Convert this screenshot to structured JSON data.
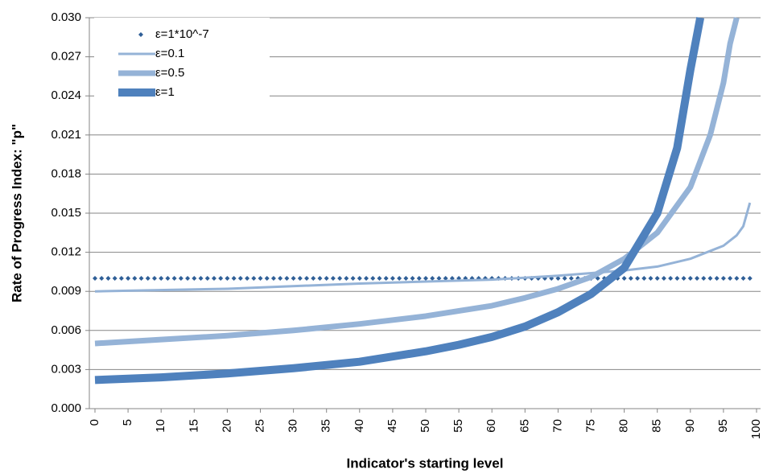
{
  "chart_data": {
    "type": "line",
    "y_label": "Rate of Progress Index: \"p\"",
    "x_label": "Indicator's starting level",
    "xlim": [
      0,
      100
    ],
    "xticks": [
      0,
      5,
      10,
      15,
      20,
      25,
      30,
      35,
      40,
      45,
      50,
      55,
      60,
      65,
      70,
      75,
      80,
      85,
      90,
      95,
      100
    ],
    "ylim": [
      0,
      0.03
    ],
    "yticks": [
      {
        "value": 0,
        "label": "0.000"
      },
      {
        "value": 0.003,
        "label": "0.003"
      },
      {
        "value": 0.006,
        "label": "0.006"
      },
      {
        "value": 0.009,
        "label": "0.009"
      },
      {
        "value": 0.012,
        "label": "0.012"
      },
      {
        "value": 0.015,
        "label": "0.015"
      },
      {
        "value": 0.018,
        "label": "0.018"
      },
      {
        "value": 0.021,
        "label": "0.021"
      },
      {
        "value": 0.024,
        "label": "0.024"
      },
      {
        "value": 0.027,
        "label": "0.027"
      },
      {
        "value": 0.03,
        "label": "0.030"
      }
    ],
    "grid": true,
    "legend": "top-left",
    "series": [
      {
        "name": "ε=1*10^-7",
        "color": "#2f5f97",
        "marker": "diamond",
        "x": [
          0,
          1,
          2,
          3,
          4,
          5,
          6,
          7,
          8,
          9,
          10,
          11,
          12,
          13,
          14,
          15,
          16,
          17,
          18,
          19,
          20,
          21,
          22,
          23,
          24,
          25,
          26,
          27,
          28,
          29,
          30,
          31,
          32,
          33,
          34,
          35,
          36,
          37,
          38,
          39,
          40,
          41,
          42,
          43,
          44,
          45,
          46,
          47,
          48,
          49,
          50,
          51,
          52,
          53,
          54,
          55,
          56,
          57,
          58,
          59,
          60,
          61,
          62,
          63,
          64,
          65,
          66,
          67,
          68,
          69,
          70,
          71,
          72,
          73,
          74,
          75,
          76,
          77,
          78,
          79,
          80,
          81,
          82,
          83,
          84,
          85,
          86,
          87,
          88,
          89,
          90,
          91,
          92,
          93,
          94,
          95,
          96,
          97,
          98,
          99
        ],
        "values": [
          0.01,
          0.01,
          0.01,
          0.01,
          0.01,
          0.01,
          0.01,
          0.01,
          0.01,
          0.01,
          0.01,
          0.01,
          0.01,
          0.01,
          0.01,
          0.01,
          0.01,
          0.01,
          0.01,
          0.01,
          0.01,
          0.01,
          0.01,
          0.01,
          0.01,
          0.01,
          0.01,
          0.01,
          0.01,
          0.01,
          0.01,
          0.01,
          0.01,
          0.01,
          0.01,
          0.01,
          0.01,
          0.01,
          0.01,
          0.01,
          0.01,
          0.01,
          0.01,
          0.01,
          0.01,
          0.01,
          0.01,
          0.01,
          0.01,
          0.01,
          0.01,
          0.01,
          0.01,
          0.01,
          0.01,
          0.01,
          0.01,
          0.01,
          0.01,
          0.01,
          0.01,
          0.01,
          0.01,
          0.01,
          0.01,
          0.01,
          0.01,
          0.01,
          0.01,
          0.01,
          0.01,
          0.01,
          0.01,
          0.01,
          0.01,
          0.01,
          0.01,
          0.01,
          0.01,
          0.01,
          0.01,
          0.01,
          0.01,
          0.01,
          0.01,
          0.01,
          0.01,
          0.01,
          0.01,
          0.01,
          0.01,
          0.01,
          0.01,
          0.01,
          0.01,
          0.01,
          0.01,
          0.01,
          0.01,
          0.01
        ]
      },
      {
        "name": "ε=0.1",
        "color": "#95b3d7",
        "line_width": 3,
        "x": [
          0,
          20,
          40,
          60,
          70,
          80,
          85,
          90,
          95,
          97,
          98,
          99
        ],
        "values": [
          0.009,
          0.0092,
          0.0096,
          0.0099,
          0.0102,
          0.0106,
          0.0109,
          0.0115,
          0.0125,
          0.0133,
          0.014,
          0.0158
        ]
      },
      {
        "name": "ε=0.5",
        "color": "#95b3d7",
        "line_width": 7,
        "x": [
          0,
          10,
          20,
          30,
          40,
          50,
          60,
          65,
          70,
          75,
          80,
          85,
          90,
          93,
          95,
          96,
          97
        ],
        "values": [
          0.005,
          0.0053,
          0.0056,
          0.006,
          0.0065,
          0.0071,
          0.0079,
          0.0085,
          0.0092,
          0.0101,
          0.0115,
          0.0135,
          0.017,
          0.021,
          0.025,
          0.028,
          0.03
        ]
      },
      {
        "name": "ε=1",
        "color": "#4f81bd",
        "line_width": 10,
        "x": [
          0,
          10,
          20,
          30,
          40,
          50,
          55,
          60,
          65,
          70,
          75,
          80,
          85,
          88,
          90,
          91.5
        ],
        "values": [
          0.0022,
          0.0024,
          0.0027,
          0.0031,
          0.0036,
          0.0044,
          0.0049,
          0.0055,
          0.0063,
          0.0074,
          0.0088,
          0.0108,
          0.015,
          0.02,
          0.026,
          0.03
        ]
      }
    ]
  }
}
